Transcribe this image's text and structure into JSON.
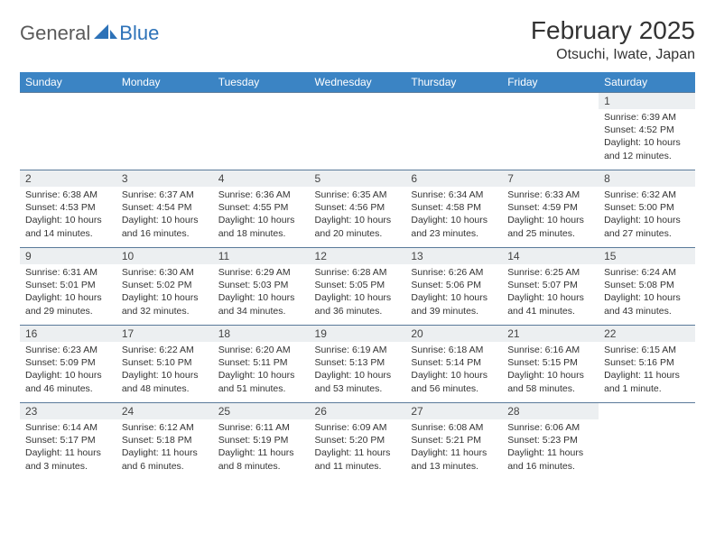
{
  "logo": {
    "general": "General",
    "blue": "Blue"
  },
  "title": "February 2025",
  "location": "Otsuchi, Iwate, Japan",
  "colors": {
    "header_bg": "#3b84c4",
    "header_text": "#ffffff",
    "daynum_bg": "#eceff1",
    "border": "#5a7a9a",
    "logo_blue": "#2d72b8",
    "logo_gray": "#5a5a5a"
  },
  "day_headers": [
    "Sunday",
    "Monday",
    "Tuesday",
    "Wednesday",
    "Thursday",
    "Friday",
    "Saturday"
  ],
  "weeks": [
    [
      null,
      null,
      null,
      null,
      null,
      null,
      {
        "n": "1",
        "sr": "Sunrise: 6:39 AM",
        "ss": "Sunset: 4:52 PM",
        "dl": "Daylight: 10 hours and 12 minutes."
      }
    ],
    [
      {
        "n": "2",
        "sr": "Sunrise: 6:38 AM",
        "ss": "Sunset: 4:53 PM",
        "dl": "Daylight: 10 hours and 14 minutes."
      },
      {
        "n": "3",
        "sr": "Sunrise: 6:37 AM",
        "ss": "Sunset: 4:54 PM",
        "dl": "Daylight: 10 hours and 16 minutes."
      },
      {
        "n": "4",
        "sr": "Sunrise: 6:36 AM",
        "ss": "Sunset: 4:55 PM",
        "dl": "Daylight: 10 hours and 18 minutes."
      },
      {
        "n": "5",
        "sr": "Sunrise: 6:35 AM",
        "ss": "Sunset: 4:56 PM",
        "dl": "Daylight: 10 hours and 20 minutes."
      },
      {
        "n": "6",
        "sr": "Sunrise: 6:34 AM",
        "ss": "Sunset: 4:58 PM",
        "dl": "Daylight: 10 hours and 23 minutes."
      },
      {
        "n": "7",
        "sr": "Sunrise: 6:33 AM",
        "ss": "Sunset: 4:59 PM",
        "dl": "Daylight: 10 hours and 25 minutes."
      },
      {
        "n": "8",
        "sr": "Sunrise: 6:32 AM",
        "ss": "Sunset: 5:00 PM",
        "dl": "Daylight: 10 hours and 27 minutes."
      }
    ],
    [
      {
        "n": "9",
        "sr": "Sunrise: 6:31 AM",
        "ss": "Sunset: 5:01 PM",
        "dl": "Daylight: 10 hours and 29 minutes."
      },
      {
        "n": "10",
        "sr": "Sunrise: 6:30 AM",
        "ss": "Sunset: 5:02 PM",
        "dl": "Daylight: 10 hours and 32 minutes."
      },
      {
        "n": "11",
        "sr": "Sunrise: 6:29 AM",
        "ss": "Sunset: 5:03 PM",
        "dl": "Daylight: 10 hours and 34 minutes."
      },
      {
        "n": "12",
        "sr": "Sunrise: 6:28 AM",
        "ss": "Sunset: 5:05 PM",
        "dl": "Daylight: 10 hours and 36 minutes."
      },
      {
        "n": "13",
        "sr": "Sunrise: 6:26 AM",
        "ss": "Sunset: 5:06 PM",
        "dl": "Daylight: 10 hours and 39 minutes."
      },
      {
        "n": "14",
        "sr": "Sunrise: 6:25 AM",
        "ss": "Sunset: 5:07 PM",
        "dl": "Daylight: 10 hours and 41 minutes."
      },
      {
        "n": "15",
        "sr": "Sunrise: 6:24 AM",
        "ss": "Sunset: 5:08 PM",
        "dl": "Daylight: 10 hours and 43 minutes."
      }
    ],
    [
      {
        "n": "16",
        "sr": "Sunrise: 6:23 AM",
        "ss": "Sunset: 5:09 PM",
        "dl": "Daylight: 10 hours and 46 minutes."
      },
      {
        "n": "17",
        "sr": "Sunrise: 6:22 AM",
        "ss": "Sunset: 5:10 PM",
        "dl": "Daylight: 10 hours and 48 minutes."
      },
      {
        "n": "18",
        "sr": "Sunrise: 6:20 AM",
        "ss": "Sunset: 5:11 PM",
        "dl": "Daylight: 10 hours and 51 minutes."
      },
      {
        "n": "19",
        "sr": "Sunrise: 6:19 AM",
        "ss": "Sunset: 5:13 PM",
        "dl": "Daylight: 10 hours and 53 minutes."
      },
      {
        "n": "20",
        "sr": "Sunrise: 6:18 AM",
        "ss": "Sunset: 5:14 PM",
        "dl": "Daylight: 10 hours and 56 minutes."
      },
      {
        "n": "21",
        "sr": "Sunrise: 6:16 AM",
        "ss": "Sunset: 5:15 PM",
        "dl": "Daylight: 10 hours and 58 minutes."
      },
      {
        "n": "22",
        "sr": "Sunrise: 6:15 AM",
        "ss": "Sunset: 5:16 PM",
        "dl": "Daylight: 11 hours and 1 minute."
      }
    ],
    [
      {
        "n": "23",
        "sr": "Sunrise: 6:14 AM",
        "ss": "Sunset: 5:17 PM",
        "dl": "Daylight: 11 hours and 3 minutes."
      },
      {
        "n": "24",
        "sr": "Sunrise: 6:12 AM",
        "ss": "Sunset: 5:18 PM",
        "dl": "Daylight: 11 hours and 6 minutes."
      },
      {
        "n": "25",
        "sr": "Sunrise: 6:11 AM",
        "ss": "Sunset: 5:19 PM",
        "dl": "Daylight: 11 hours and 8 minutes."
      },
      {
        "n": "26",
        "sr": "Sunrise: 6:09 AM",
        "ss": "Sunset: 5:20 PM",
        "dl": "Daylight: 11 hours and 11 minutes."
      },
      {
        "n": "27",
        "sr": "Sunrise: 6:08 AM",
        "ss": "Sunset: 5:21 PM",
        "dl": "Daylight: 11 hours and 13 minutes."
      },
      {
        "n": "28",
        "sr": "Sunrise: 6:06 AM",
        "ss": "Sunset: 5:23 PM",
        "dl": "Daylight: 11 hours and 16 minutes."
      },
      null
    ]
  ]
}
